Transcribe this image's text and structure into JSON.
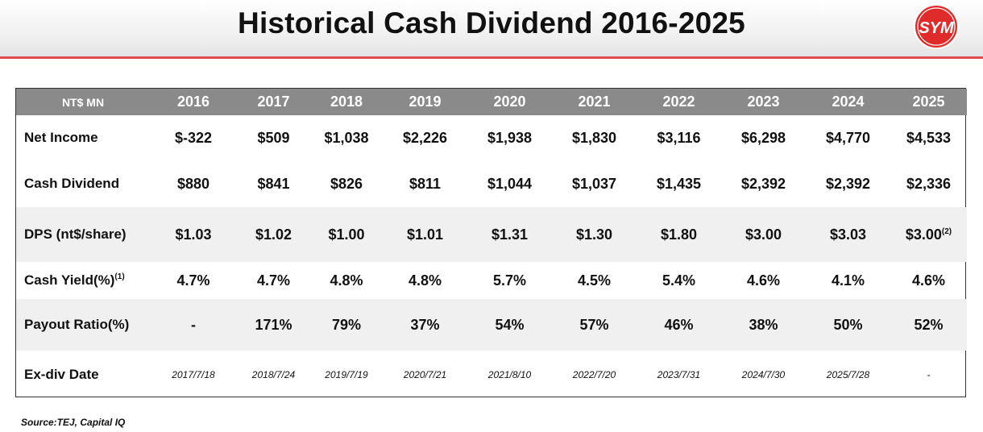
{
  "title": "Historical Cash Dividend 2016-2025",
  "logo_text": "SYM",
  "colors": {
    "accent": "#e04b4b",
    "header_row": "#8a8a8a",
    "logo": "#e02b2b"
  },
  "chart_data": {
    "type": "table",
    "header_label": "NT$ MN",
    "columns": [
      "2016",
      "2017",
      "2018",
      "2019",
      "2020",
      "2021",
      "2022",
      "2023",
      "2024",
      "2025"
    ],
    "rows": [
      {
        "label": "Net Income",
        "values": [
          "$-322",
          "$509",
          "$1,038",
          "$2,226",
          "$1,938",
          "$1,830",
          "$3,116",
          "$6,298",
          "$4,770",
          "$4,533"
        ]
      },
      {
        "label": "Cash Dividend",
        "values": [
          "$880",
          "$841",
          "$826",
          "$811",
          "$1,044",
          "$1,037",
          "$1,435",
          "$2,392",
          "$2,392",
          "$2,336"
        ]
      },
      {
        "label": "DPS (nt$/share)",
        "values": [
          "$1.03",
          "$1.02",
          "$1.00",
          "$1.01",
          "$1.31",
          "$1.30",
          "$1.80",
          "$3.00",
          "$3.03",
          "$3.00"
        ]
      },
      {
        "label": "Cash Yield(%)",
        "values": [
          "4.7%",
          "4.7%",
          "4.8%",
          "4.8%",
          "5.7%",
          "4.5%",
          "5.4%",
          "4.6%",
          "4.1%",
          "4.6%"
        ]
      },
      {
        "label": "Payout Ratio(%)",
        "values": [
          "-",
          "171%",
          "79%",
          "37%",
          "54%",
          "57%",
          "46%",
          "38%",
          "50%",
          "52%"
        ]
      },
      {
        "label": "Ex-div Date",
        "values": [
          "2017/7/18",
          "2018/7/24",
          "2019/7/19",
          "2020/7/21",
          "2021/8/10",
          "2022/7/20",
          "2023/7/31",
          "2024/7/30",
          "2025/7/28",
          "-"
        ]
      }
    ],
    "footnotes": {
      "dps_2025": "(2)",
      "cash_yield_label": "(1)"
    }
  },
  "source": "Source:TEJ, Capital IQ"
}
